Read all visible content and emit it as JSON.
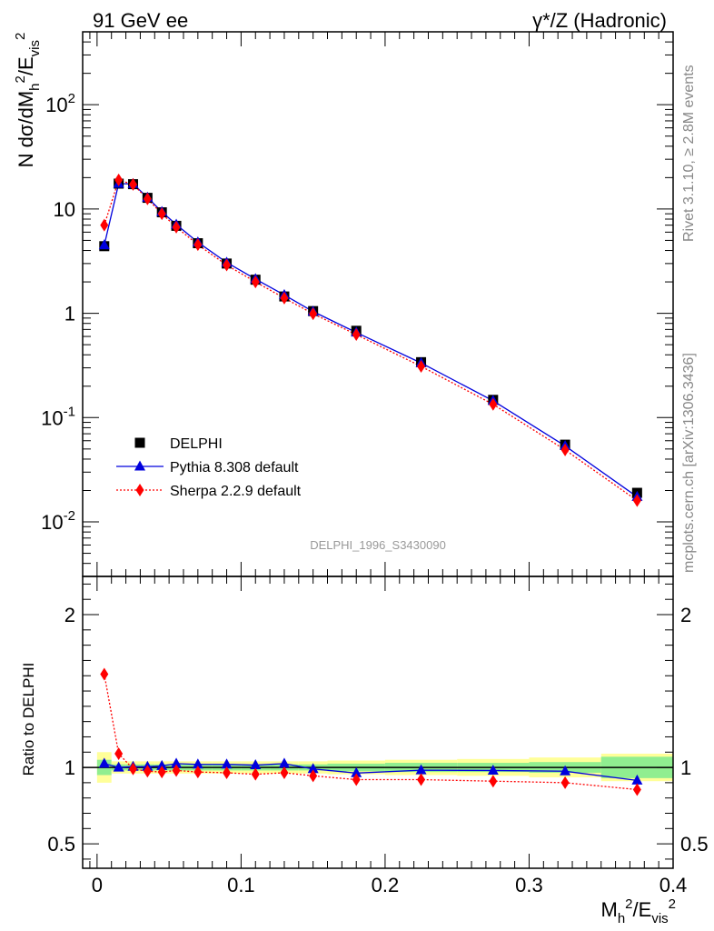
{
  "header": {
    "left": "91 GeV ee",
    "right": "γ*/Z (Hadronic)"
  },
  "side_text": {
    "rivet": "Rivet 3.1.10, ≥ 2.8M events",
    "mcplots": "mcplots.cern.ch [arXiv:1306.3436]"
  },
  "watermark": "DELPHI_1996_S3430090",
  "chart_data": [
    {
      "type": "scatter",
      "panel": "main",
      "ylabel": "N dσ/dM_h^2/E_vis^2",
      "yscale": "log",
      "ylim": [
        0.003,
        500
      ],
      "xlim": [
        -0.01,
        0.4
      ],
      "grid": false,
      "legend_position": "center-left",
      "y_ticks": [
        {
          "value": 0.01,
          "label": "10^-2"
        },
        {
          "value": 0.1,
          "label": "10^-1"
        },
        {
          "value": 1,
          "label": "1"
        },
        {
          "value": 10,
          "label": "10"
        },
        {
          "value": 100,
          "label": "10^2"
        }
      ],
      "series": [
        {
          "name": "DELPHI",
          "marker": "square",
          "color": "#000000",
          "x": [
            0.005,
            0.015,
            0.025,
            0.035,
            0.045,
            0.055,
            0.07,
            0.09,
            0.11,
            0.13,
            0.15,
            0.18,
            0.225,
            0.275,
            0.325,
            0.375
          ],
          "y": [
            4.4,
            17.5,
            17.3,
            12.8,
            9.3,
            6.9,
            4.7,
            3.0,
            2.1,
            1.45,
            1.05,
            0.68,
            0.34,
            0.148,
            0.055,
            0.019
          ]
        },
        {
          "name": "Pythia 8.308 default",
          "marker": "triangle",
          "line": "solid",
          "color": "#0000dd",
          "x": [
            0.005,
            0.015,
            0.025,
            0.035,
            0.045,
            0.055,
            0.07,
            0.09,
            0.11,
            0.13,
            0.15,
            0.18,
            0.225,
            0.275,
            0.325,
            0.375
          ],
          "y": [
            4.5,
            17.5,
            17.4,
            12.9,
            9.4,
            7.1,
            4.8,
            3.07,
            2.13,
            1.5,
            1.04,
            0.655,
            0.334,
            0.145,
            0.0535,
            0.0174
          ]
        },
        {
          "name": "Sherpa 2.2.9 default",
          "marker": "diamond",
          "line": "dotted",
          "color": "#ff0000",
          "x": [
            0.005,
            0.015,
            0.025,
            0.035,
            0.045,
            0.055,
            0.07,
            0.09,
            0.11,
            0.13,
            0.15,
            0.18,
            0.225,
            0.275,
            0.325,
            0.375
          ],
          "y": [
            7.0,
            19.0,
            17.2,
            12.5,
            9.0,
            6.7,
            4.55,
            2.9,
            2.0,
            1.4,
            0.99,
            0.625,
            0.31,
            0.134,
            0.049,
            0.016
          ]
        }
      ]
    },
    {
      "type": "line",
      "panel": "ratio",
      "ylabel": "Ratio to DELPHI",
      "xlabel": "M_h^2/E_vis^2",
      "ylim": [
        0.34,
        2.25
      ],
      "xlim": [
        -0.01,
        0.4
      ],
      "x_ticks": [
        {
          "value": 0,
          "label": "0"
        },
        {
          "value": 0.1,
          "label": "0.1"
        },
        {
          "value": 0.2,
          "label": "0.2"
        },
        {
          "value": 0.3,
          "label": "0.3"
        },
        {
          "value": 0.4,
          "label": "0.4"
        }
      ],
      "y_ticks": [
        {
          "value": 0.5,
          "label": "0.5"
        },
        {
          "value": 1,
          "label": "1"
        },
        {
          "value": 2,
          "label": "2"
        }
      ],
      "bands": {
        "bin_edges": [
          0.0,
          0.01,
          0.02,
          0.03,
          0.04,
          0.05,
          0.06,
          0.08,
          0.1,
          0.12,
          0.14,
          0.16,
          0.2,
          0.25,
          0.3,
          0.35,
          0.4
        ],
        "stat_halfwidth": [
          0.05,
          0.02,
          0.02,
          0.02,
          0.02,
          0.02,
          0.02,
          0.02,
          0.02,
          0.02,
          0.02,
          0.025,
          0.03,
          0.03,
          0.035,
          0.07
        ],
        "total_halfwidth": [
          0.1,
          0.04,
          0.04,
          0.04,
          0.04,
          0.04,
          0.04,
          0.04,
          0.04,
          0.04,
          0.04,
          0.045,
          0.05,
          0.055,
          0.065,
          0.09
        ],
        "stat_color": "#90ee90",
        "total_color": "#ffff99"
      },
      "series": [
        {
          "name": "Pythia 8.308 default",
          "marker": "triangle",
          "line": "solid",
          "color": "#0000dd",
          "x": [
            0.005,
            0.015,
            0.025,
            0.035,
            0.045,
            0.055,
            0.07,
            0.09,
            0.11,
            0.13,
            0.15,
            0.18,
            0.225,
            0.275,
            0.325,
            0.375
          ],
          "y": [
            1.025,
            1.0,
            1.005,
            1.005,
            1.01,
            1.025,
            1.02,
            1.02,
            1.015,
            1.025,
            0.99,
            0.963,
            0.982,
            0.98,
            0.975,
            0.915
          ]
        },
        {
          "name": "Sherpa 2.2.9 default",
          "marker": "diamond",
          "line": "dotted",
          "color": "#ff0000",
          "x": [
            0.005,
            0.015,
            0.025,
            0.035,
            0.045,
            0.055,
            0.07,
            0.09,
            0.11,
            0.13,
            0.15,
            0.18,
            0.225,
            0.275,
            0.325,
            0.375
          ],
          "y": [
            1.61,
            1.09,
            0.99,
            0.975,
            0.97,
            0.98,
            0.97,
            0.965,
            0.955,
            0.965,
            0.945,
            0.92,
            0.92,
            0.91,
            0.9,
            0.855
          ]
        }
      ]
    }
  ]
}
